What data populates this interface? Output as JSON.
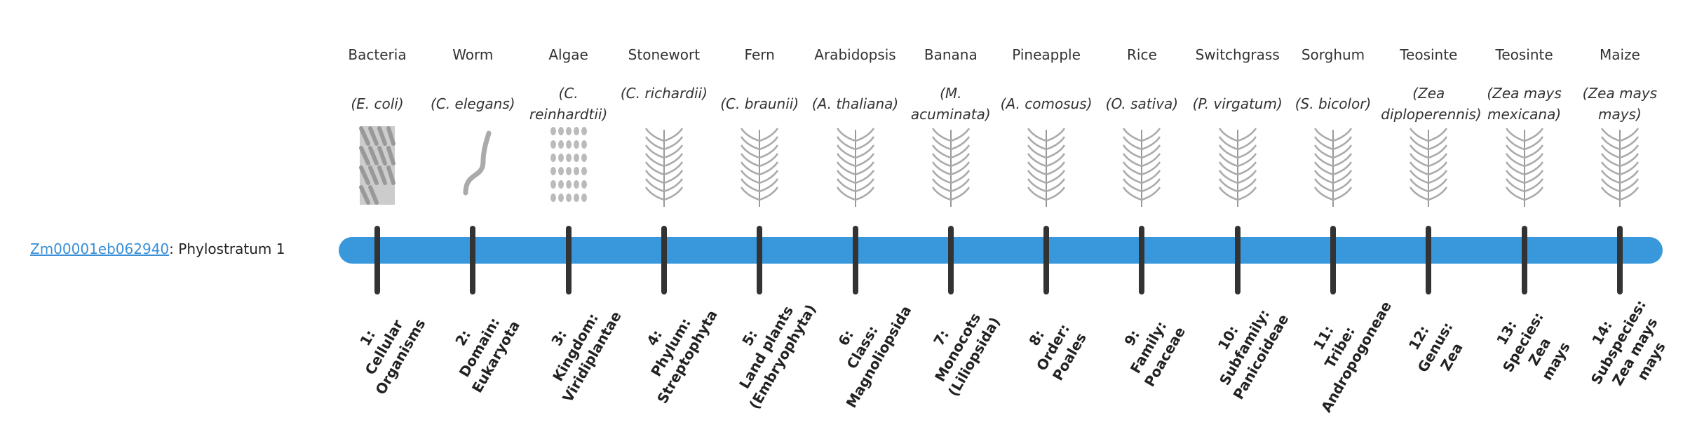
{
  "gene": {
    "id": "Zm00001eb062940",
    "suffix": ": Phylostratum 1"
  },
  "colors": {
    "bar": "#3898db",
    "tick": "#333333",
    "link": "#3a8fd6"
  },
  "organisms": [
    {
      "common": "Bacteria",
      "sci": "(E. coli)",
      "icon": "bacteria-icon"
    },
    {
      "common": "Worm",
      "sci": "(C. elegans)",
      "icon": "worm-icon"
    },
    {
      "common": "Algae",
      "sci": "(C. reinhardtii)",
      "icon": "algae-icon"
    },
    {
      "common": "Stonewort",
      "sci": "(C. richardii)",
      "icon": "stonewort-icon"
    },
    {
      "common": "Fern",
      "sci": "(C. braunii)",
      "icon": "fern-icon"
    },
    {
      "common": "Arabidopsis",
      "sci": "(A. thaliana)",
      "icon": "arabidopsis-icon"
    },
    {
      "common": "Banana",
      "sci": "(M. acuminata)",
      "icon": "banana-icon"
    },
    {
      "common": "Pineapple",
      "sci": "(A. comosus)",
      "icon": "pineapple-icon"
    },
    {
      "common": "Rice",
      "sci": "(O. sativa)",
      "icon": "rice-icon"
    },
    {
      "common": "Switchgrass",
      "sci": "(P. virgatum)",
      "icon": "switchgrass-icon"
    },
    {
      "common": "Sorghum",
      "sci": "(S. bicolor)",
      "icon": "sorghum-icon"
    },
    {
      "common": "Teosinte",
      "sci": "(Zea diploperennis)",
      "icon": "teosinte-icon"
    },
    {
      "common": "Teosinte",
      "sci": "(Zea mays mexicana)",
      "icon": "teosinte-icon"
    },
    {
      "common": "Maize",
      "sci": "(Zea mays mays)",
      "icon": "maize-icon"
    }
  ],
  "levels": [
    [
      "1:",
      "Cellular",
      "Organisms"
    ],
    [
      "2:",
      "Domain:",
      "Eukaryota"
    ],
    [
      "3:",
      "Kingdom:",
      "Viridiplantae"
    ],
    [
      "4:",
      "Phylum:",
      "Streptophyta"
    ],
    [
      "5:",
      "Land plants",
      "(Embryophyta)"
    ],
    [
      "6:",
      "Class:",
      "Magnoliopsida"
    ],
    [
      "7:",
      "Monocots",
      "(Liliopsida)"
    ],
    [
      "8:",
      "Order:",
      "Poales"
    ],
    [
      "9:",
      "Family:",
      "Poaceae"
    ],
    [
      "10:",
      "Subfamily:",
      "Panicoideae"
    ],
    [
      "11:",
      "Tribe:",
      "Andropogoneae"
    ],
    [
      "12:",
      "Genus:",
      "Zea"
    ],
    [
      "13:",
      "Species:",
      "Zea",
      "mays"
    ],
    [
      "14:",
      "Subspecies:",
      "Zea mays",
      "mays"
    ]
  ]
}
